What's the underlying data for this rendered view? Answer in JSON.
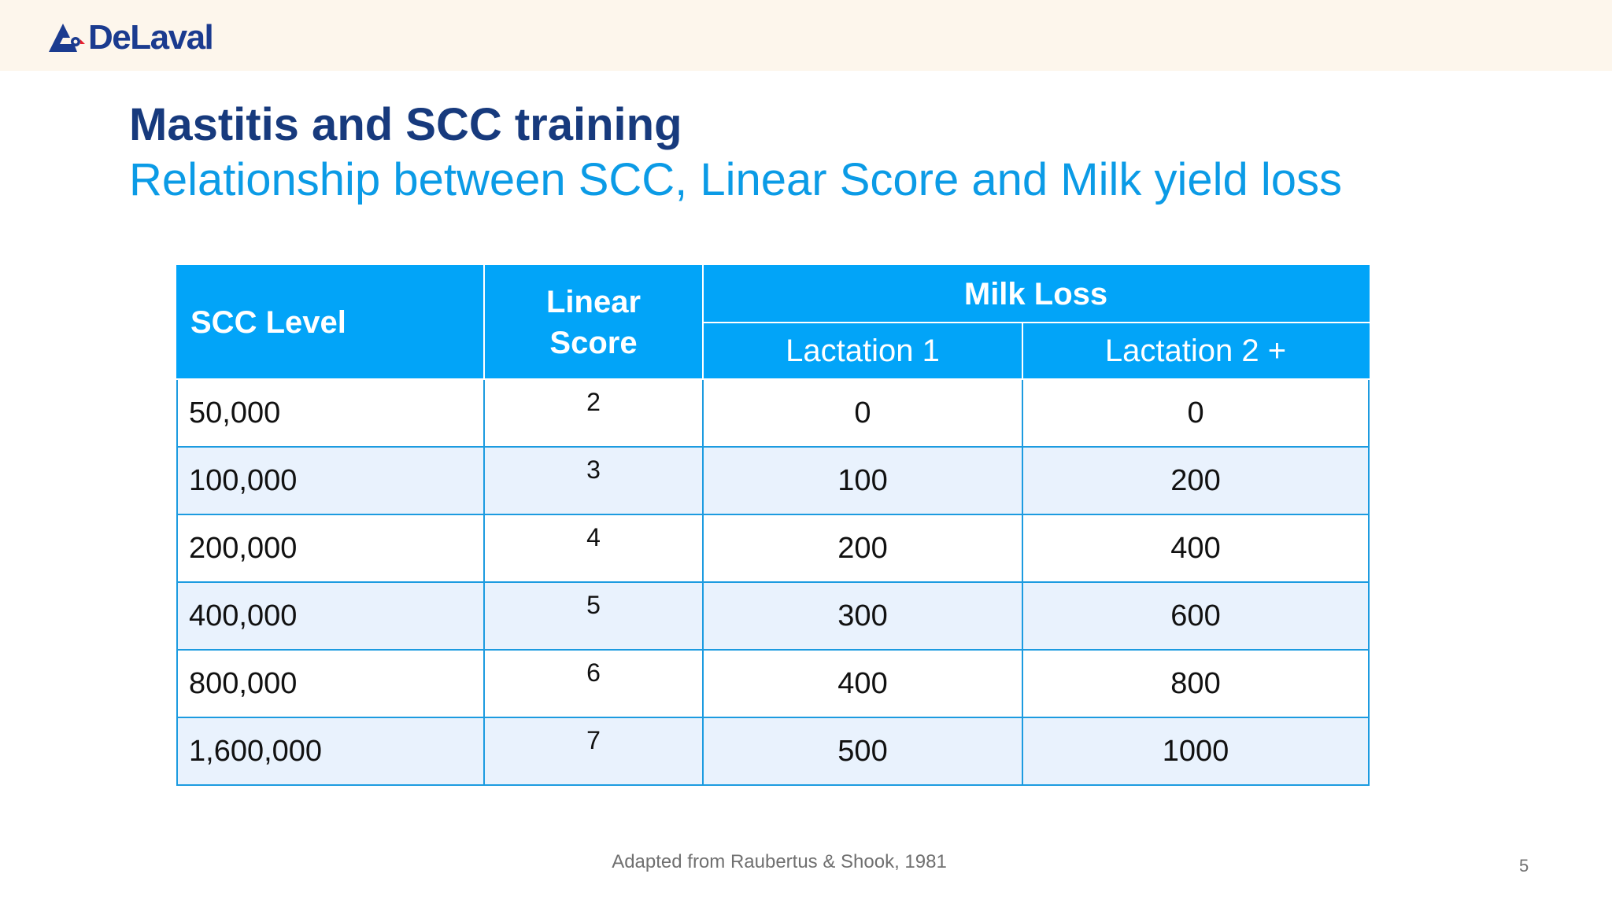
{
  "brand": {
    "name": "DeLaval",
    "logo_icon": "delaval-logo-icon"
  },
  "slide": {
    "title": "Mastitis and SCC training",
    "subtitle": "Relationship between SCC, Linear Score and Milk yield loss",
    "source": "Adapted from Raubertus & Shook, 1981",
    "page_number": "5"
  },
  "table": {
    "headers": {
      "scc_level": "SCC Level",
      "linear_line1": "Linear",
      "linear_line2": "Score",
      "milk_loss": "Milk Loss",
      "lactation1": "Lactation 1",
      "lactation2": "Lactation 2 +"
    },
    "rows": [
      {
        "scc": "50,000",
        "linear": "2",
        "lact1": "0",
        "lact2": "0"
      },
      {
        "scc": "100,000",
        "linear": "3",
        "lact1": "100",
        "lact2": "200"
      },
      {
        "scc": "200,000",
        "linear": "4",
        "lact1": "200",
        "lact2": "400"
      },
      {
        "scc": "400,000",
        "linear": "5",
        "lact1": "300",
        "lact2": "600"
      },
      {
        "scc": "800,000",
        "linear": "6",
        "lact1": "400",
        "lact2": "800"
      },
      {
        "scc": "1,600,000",
        "linear": "7",
        "lact1": "500",
        "lact2": "1000"
      }
    ]
  },
  "colors": {
    "header_bg": "#02a4f8",
    "title": "#173a7d",
    "subtitle": "#0b9be6",
    "stripe": "#e9f2fd",
    "brand": "#1b3b8f"
  }
}
